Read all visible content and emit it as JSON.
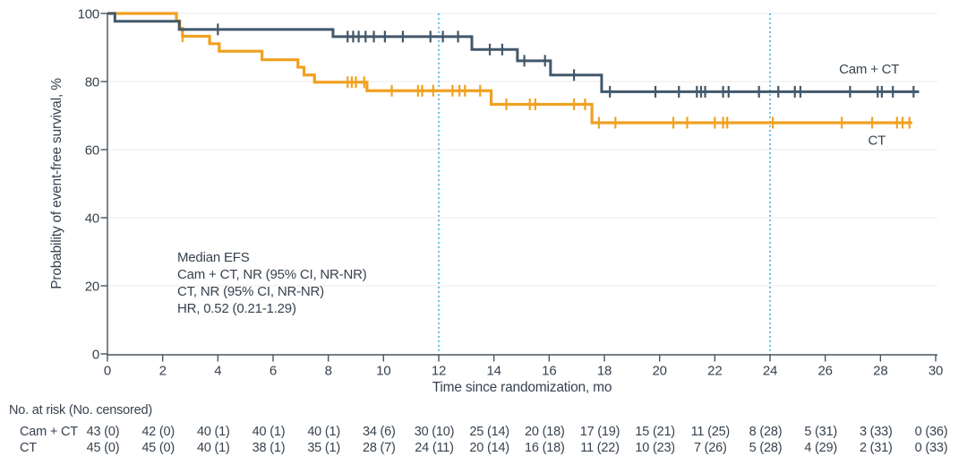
{
  "chart_data": {
    "type": "line",
    "subtype": "kaplan-meier-step-curves",
    "x_axis": {
      "label": "Time since randomization, mo",
      "ticks": [
        0,
        2,
        4,
        6,
        8,
        10,
        12,
        14,
        16,
        18,
        20,
        22,
        24,
        26,
        28,
        30
      ],
      "range": [
        0,
        30
      ]
    },
    "y_axis": {
      "label": "Probability of event-free survival, %",
      "ticks": [
        0,
        20,
        40,
        60,
        80,
        100
      ],
      "gridlines": [
        20,
        40,
        60,
        80,
        100
      ],
      "range": [
        0,
        100
      ]
    },
    "reference_lines": {
      "months": [
        12,
        24
      ],
      "color": "#41b2e1",
      "style": "dotted"
    },
    "annotation": {
      "lines": [
        "Median EFS",
        "Cam + CT, NR (95% CI, NR-NR)",
        "CT, NR (95% CI, NR-NR)",
        "HR, 0.52 (0.21-1.29)"
      ]
    },
    "series": [
      {
        "name": "CT",
        "color": "#f0a121",
        "stroke_width": 3.2,
        "steps": [
          [
            0,
            100
          ],
          [
            2.5,
            97.8
          ],
          [
            2.62,
            95.6
          ],
          [
            2.72,
            93.3
          ],
          [
            3.7,
            91.1
          ],
          [
            4.05,
            88.9
          ],
          [
            5.6,
            86.4
          ],
          [
            6.9,
            84.2
          ],
          [
            7.12,
            81.9
          ],
          [
            7.5,
            79.8
          ],
          [
            9.4,
            77.3
          ],
          [
            13.9,
            73.3
          ],
          [
            17.55,
            67.9
          ]
        ],
        "end_month": 29.15,
        "censor_marks": [
          [
            2.72,
            93.3
          ],
          [
            8.7,
            79.8
          ],
          [
            8.85,
            79.8
          ],
          [
            9.0,
            79.8
          ],
          [
            9.3,
            79.8
          ],
          [
            10.3,
            77.3
          ],
          [
            11.25,
            77.3
          ],
          [
            11.4,
            77.3
          ],
          [
            11.8,
            77.3
          ],
          [
            12.5,
            77.3
          ],
          [
            12.75,
            77.3
          ],
          [
            12.95,
            77.3
          ],
          [
            13.5,
            77.3
          ],
          [
            14.45,
            73.3
          ],
          [
            15.3,
            73.3
          ],
          [
            15.5,
            73.3
          ],
          [
            16.9,
            73.3
          ],
          [
            17.3,
            73.3
          ],
          [
            17.8,
            67.9
          ],
          [
            18.4,
            67.9
          ],
          [
            20.5,
            67.9
          ],
          [
            21.0,
            67.9
          ],
          [
            22.0,
            67.9
          ],
          [
            22.3,
            67.9
          ],
          [
            22.45,
            67.9
          ],
          [
            24.1,
            67.9
          ],
          [
            26.6,
            67.9
          ],
          [
            27.7,
            67.9
          ],
          [
            28.6,
            67.9
          ],
          [
            28.8,
            67.9
          ],
          [
            29.05,
            67.9
          ]
        ],
        "label_anchor": [
          27.55,
          61.5
        ]
      },
      {
        "name": "Cam + CT",
        "color": "#42586b",
        "stroke_width": 3,
        "steps": [
          [
            0,
            100
          ],
          [
            0.27,
            97.7
          ],
          [
            2.6,
            95.3
          ],
          [
            8.17,
            93.2
          ],
          [
            13.2,
            89.4
          ],
          [
            14.85,
            86.1
          ],
          [
            16.05,
            81.9
          ],
          [
            17.9,
            77.0
          ]
        ],
        "end_month": 29.4,
        "censor_marks": [
          [
            4.0,
            95.3
          ],
          [
            8.7,
            93.2
          ],
          [
            8.9,
            93.2
          ],
          [
            9.1,
            93.2
          ],
          [
            9.35,
            93.2
          ],
          [
            9.65,
            93.2
          ],
          [
            10.05,
            93.2
          ],
          [
            10.7,
            93.2
          ],
          [
            11.7,
            93.2
          ],
          [
            12.15,
            93.2
          ],
          [
            12.7,
            93.2
          ],
          [
            13.85,
            89.4
          ],
          [
            14.3,
            89.4
          ],
          [
            15.1,
            86.1
          ],
          [
            15.85,
            86.1
          ],
          [
            16.9,
            81.9
          ],
          [
            18.2,
            77.0
          ],
          [
            19.85,
            77.0
          ],
          [
            20.7,
            77.0
          ],
          [
            21.35,
            77.0
          ],
          [
            21.5,
            77.0
          ],
          [
            21.65,
            77.0
          ],
          [
            22.3,
            77.0
          ],
          [
            22.5,
            77.0
          ],
          [
            23.6,
            77.0
          ],
          [
            24.3,
            77.0
          ],
          [
            24.9,
            77.0
          ],
          [
            25.1,
            77.0
          ],
          [
            26.9,
            77.0
          ],
          [
            27.9,
            77.0
          ],
          [
            28.05,
            77.0
          ],
          [
            28.45,
            77.0
          ],
          [
            29.2,
            77.0
          ]
        ],
        "label_anchor": [
          26.5,
          82.4
        ]
      }
    ]
  },
  "risk_table": {
    "header": "No. at risk (No. censored)",
    "months": [
      0,
      2,
      4,
      6,
      8,
      10,
      12,
      14,
      16,
      18,
      20,
      22,
      24,
      26,
      28,
      30
    ],
    "rows": [
      {
        "label": "Cam + CT",
        "values": [
          "43 (0)",
          "42 (0)",
          "40 (1)",
          "40 (1)",
          "40 (1)",
          "34 (6)",
          "30 (10)",
          "25 (14)",
          "20 (18)",
          "17 (19)",
          "15 (21)",
          "11 (25)",
          "8 (28)",
          "5 (31)",
          "3 (33)",
          "0 (36)"
        ]
      },
      {
        "label": "CT",
        "values": [
          "45 (0)",
          "45 (0)",
          "40 (1)",
          "38 (1)",
          "35 (1)",
          "28 (7)",
          "24 (11)",
          "20 (14)",
          "16 (18)",
          "11 (22)",
          "10 (23)",
          "7 (26)",
          "5 (28)",
          "4 (29)",
          "2 (31)",
          "0 (33)"
        ]
      }
    ]
  }
}
